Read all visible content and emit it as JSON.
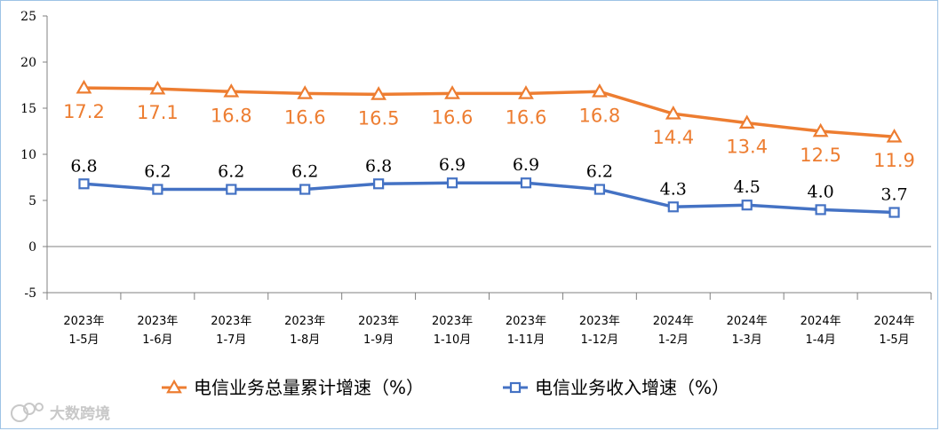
{
  "chart_data": {
    "type": "line",
    "title": "",
    "xlabel": "",
    "ylabel": "",
    "ylim": [
      -5,
      25
    ],
    "yticks": [
      -5,
      0,
      5,
      10,
      15,
      20,
      25
    ],
    "grid": false,
    "legend_position": "bottom",
    "categories": [
      [
        "2023年",
        "1-5月"
      ],
      [
        "2023年",
        "1-6月"
      ],
      [
        "2023年",
        "1-7月"
      ],
      [
        "2023年",
        "1-8月"
      ],
      [
        "2023年",
        "1-9月"
      ],
      [
        "2023年",
        "1-10月"
      ],
      [
        "2023年",
        "1-11月"
      ],
      [
        "2023年",
        "1-12月"
      ],
      [
        "2024年",
        "1-2月"
      ],
      [
        "2024年",
        "1-3月"
      ],
      [
        "2024年",
        "1-4月"
      ],
      [
        "2024年",
        "1-5月"
      ]
    ],
    "series": [
      {
        "name": "电信业务总量累计增速（%）",
        "color": "#ed7d31",
        "marker": "triangle",
        "values": [
          17.2,
          17.1,
          16.8,
          16.6,
          16.5,
          16.6,
          16.6,
          16.8,
          14.4,
          13.4,
          12.5,
          11.9
        ],
        "labels": [
          "17.2",
          "17.1",
          "16.8",
          "16.6",
          "16.5",
          "16.6",
          "16.6",
          "16.8",
          "14.4",
          "13.4",
          "12.5",
          "11.9"
        ]
      },
      {
        "name": "电信业务收入增速（%）",
        "color": "#4472c4",
        "marker": "square",
        "values": [
          6.8,
          6.2,
          6.2,
          6.2,
          6.8,
          6.9,
          6.9,
          6.2,
          4.3,
          4.5,
          4.0,
          3.7
        ],
        "labels": [
          "6.8",
          "6.2",
          "6.2",
          "6.2",
          "6.8",
          "6.9",
          "6.9",
          "6.2",
          "4.3",
          "4.5",
          "4.0",
          "3.7"
        ]
      }
    ]
  },
  "watermark": "大数跨境"
}
